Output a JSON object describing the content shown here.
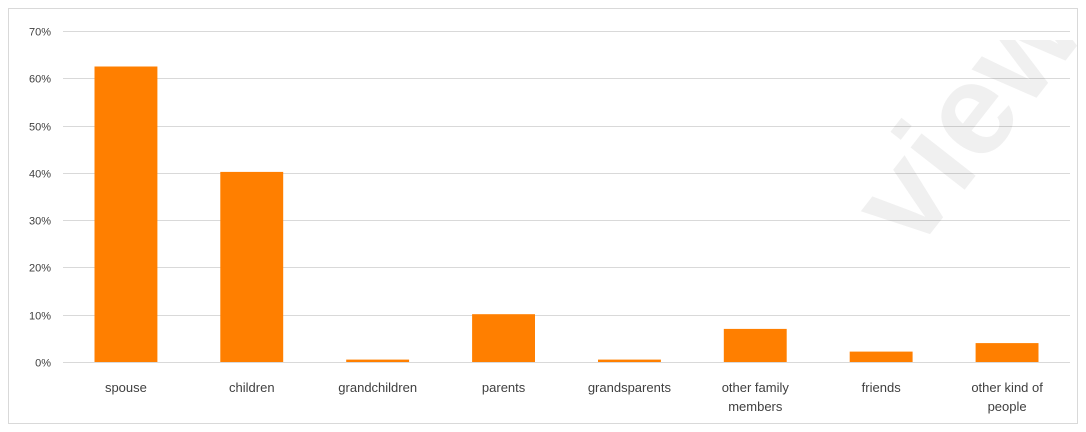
{
  "chart_data": {
    "type": "bar",
    "categories": [
      "spouse",
      "children",
      "grandchildren",
      "parents",
      "grandsparents",
      "other family members",
      "friends",
      "other kind of people"
    ],
    "category_lines": [
      [
        "spouse"
      ],
      [
        "children"
      ],
      [
        "grandchildren"
      ],
      [
        "parents"
      ],
      [
        "grandsparents"
      ],
      [
        "other family",
        "members"
      ],
      [
        "friends"
      ],
      [
        "other kind of",
        "people"
      ]
    ],
    "values": [
      62.5,
      40.2,
      0.5,
      10.1,
      0.5,
      7.0,
      2.2,
      4.0
    ],
    "ylim": [
      0,
      70
    ],
    "yticks": [
      0,
      10,
      20,
      30,
      40,
      50,
      60,
      70
    ],
    "ytick_labels": [
      "0%",
      "10%",
      "20%",
      "30%",
      "40%",
      "50%",
      "60%",
      "70%"
    ],
    "title": "",
    "xlabel": "",
    "ylabel": "",
    "grid": true,
    "bar_color": "#FF7F00",
    "grid_color": "#d9d9d9"
  },
  "watermark": "viewe"
}
